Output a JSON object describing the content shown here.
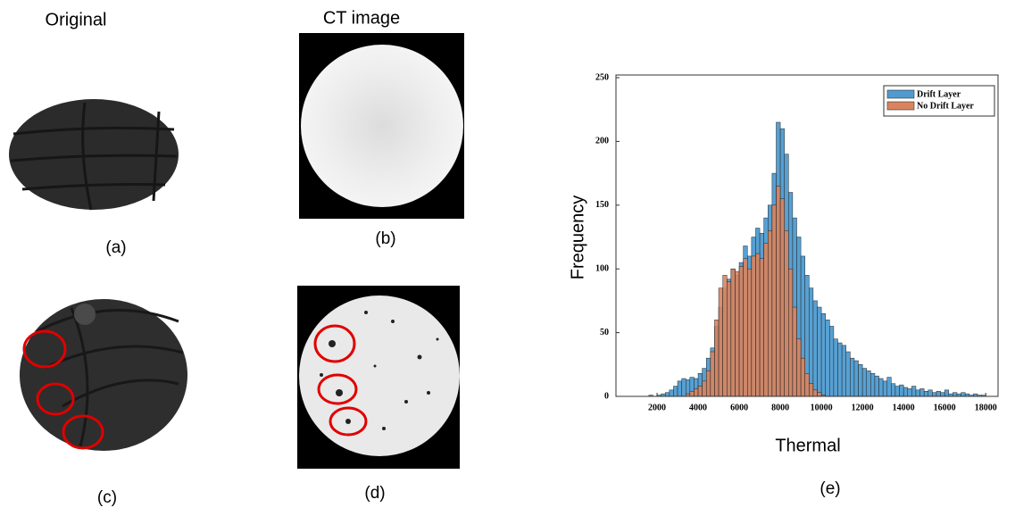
{
  "headings": [
    "Original",
    "CT image"
  ],
  "captions": [
    "(a)",
    "(b)",
    "(c)",
    "(d)",
    "(e)"
  ],
  "chart_data": {
    "type": "histogram",
    "x_label": "Thermal",
    "y_label": "Frequency",
    "bins": [
      1600,
      1800,
      2000,
      2200,
      2400,
      2600,
      2800,
      3000,
      3200,
      3400,
      3600,
      3800,
      4000,
      4200,
      4400,
      4600,
      4800,
      5000,
      5200,
      5400,
      5600,
      5800,
      6000,
      6200,
      6400,
      6600,
      6800,
      7000,
      7200,
      7400,
      7600,
      7800,
      8000,
      8200,
      8400,
      8600,
      8800,
      9000,
      9200,
      9400,
      9600,
      9800,
      10000,
      10200,
      10400,
      10600,
      10800,
      11000,
      11200,
      11400,
      11600,
      11800,
      12000,
      12200,
      12400,
      12600,
      12800,
      13000,
      13200,
      13400,
      13600,
      13800,
      14000,
      14200,
      14400,
      14600,
      14800,
      15000,
      15200,
      15400,
      15600,
      15800,
      16000,
      16200,
      16400,
      16600,
      16800,
      17000,
      17200,
      17400,
      17600,
      17800,
      18000
    ],
    "series": [
      {
        "name": "Drift Layer",
        "color": "#4f9bd0",
        "values": [
          1,
          0,
          1,
          2,
          3,
          5,
          8,
          12,
          14,
          13,
          15,
          14,
          18,
          22,
          30,
          38,
          55,
          70,
          85,
          92,
          100,
          95,
          105,
          118,
          110,
          125,
          132,
          128,
          140,
          150,
          175,
          215,
          210,
          190,
          160,
          140,
          125,
          110,
          95,
          85,
          75,
          70,
          65,
          60,
          55,
          45,
          42,
          40,
          35,
          30,
          28,
          25,
          22,
          20,
          18,
          16,
          14,
          12,
          15,
          10,
          8,
          9,
          7,
          6,
          8,
          5,
          6,
          4,
          5,
          3,
          4,
          3,
          5,
          2,
          3,
          2,
          3,
          2,
          1,
          2,
          1,
          1
        ]
      },
      {
        "name": "No Drift Layer",
        "color": "#d9845e",
        "values": [
          0,
          0,
          0,
          0,
          0,
          0,
          0,
          0,
          0,
          2,
          4,
          6,
          8,
          12,
          20,
          35,
          60,
          85,
          95,
          90,
          100,
          98,
          102,
          108,
          100,
          110,
          112,
          108,
          120,
          130,
          150,
          165,
          155,
          130,
          100,
          70,
          45,
          30,
          18,
          10,
          5,
          3,
          1,
          0,
          0,
          0,
          0,
          0,
          0,
          0,
          0,
          0,
          0,
          0,
          0,
          0,
          0,
          0,
          0,
          0,
          0,
          0,
          0,
          0,
          0,
          0,
          0,
          0,
          0,
          0,
          0,
          0,
          0,
          0,
          0,
          0,
          0,
          0,
          0,
          0,
          0,
          0
        ]
      }
    ],
    "xlim": [
      0,
      18600
    ],
    "xticks": [
      2000,
      4000,
      6000,
      8000,
      10000,
      12000,
      14000,
      16000,
      18000
    ],
    "ylim": [
      0,
      250
    ],
    "yticks": [
      0,
      50,
      100,
      150,
      200,
      250
    ],
    "legend": "upper right"
  }
}
